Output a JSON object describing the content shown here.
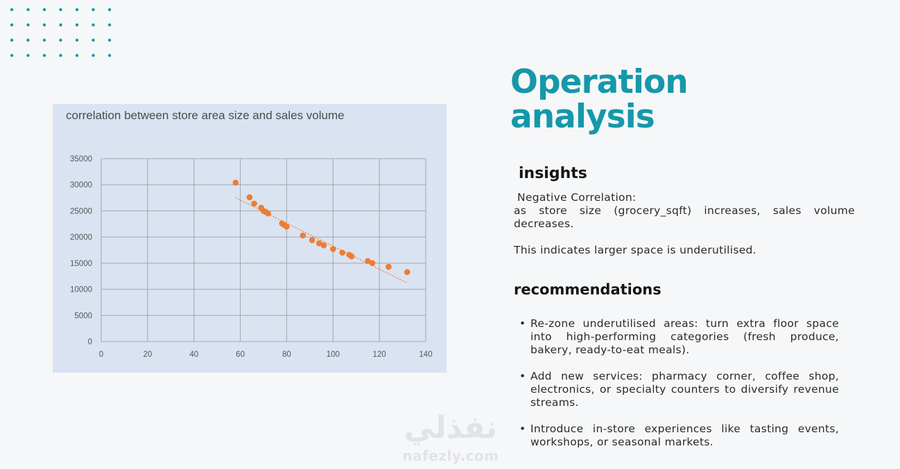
{
  "heading": {
    "line1": "Operation",
    "line2": "analysis"
  },
  "insights": {
    "title": "insights",
    "heading": "Negative Correlation:",
    "body": "as store size (grocery_sqft) increases, sales volume decreases.",
    "note": "This indicates larger space is underutilised."
  },
  "recommendations": {
    "title": "recommendations",
    "items": [
      "Re-zone underutilised areas: turn extra floor space into high-performing categories (fresh produce, bakery, ready-to-eat meals).",
      "Add new services: pharmacy corner, coffee shop, electronics, or specialty counters to diversify revenue streams.",
      "Introduce in-store experiences like tasting events, workshops, or seasonal markets."
    ]
  },
  "watermark": {
    "arabic": "نفذلي",
    "latin": "nafezly.com"
  },
  "colors": {
    "accent": "#1598aa",
    "point": "#ed7d31",
    "panel": "#dae3f2"
  },
  "chart_data": {
    "type": "scatter",
    "title": "correlation between store area size and sales volume",
    "xlabel": "",
    "ylabel": "",
    "xlim": [
      0,
      140
    ],
    "ylim": [
      0,
      35000
    ],
    "x_ticks": [
      0,
      20,
      40,
      60,
      80,
      100,
      120,
      140
    ],
    "y_ticks": [
      0,
      5000,
      10000,
      15000,
      20000,
      25000,
      30000,
      35000
    ],
    "grid": true,
    "trendline": {
      "type": "linear",
      "dashed": true,
      "from": [
        58,
        27500
      ],
      "to": [
        132,
        11200
      ]
    },
    "series": [
      {
        "points": [
          [
            58,
            30400
          ],
          [
            64,
            27600
          ],
          [
            66,
            26400
          ],
          [
            69,
            25600
          ],
          [
            70,
            25000
          ],
          [
            71,
            24800
          ],
          [
            72,
            24500
          ],
          [
            78,
            22600
          ],
          [
            79,
            22300
          ],
          [
            80,
            22000
          ],
          [
            87,
            20300
          ],
          [
            91,
            19400
          ],
          [
            94,
            18800
          ],
          [
            96,
            18400
          ],
          [
            100,
            17700
          ],
          [
            104,
            17000
          ],
          [
            107,
            16600
          ],
          [
            108,
            16300
          ],
          [
            115,
            15400
          ],
          [
            117,
            15000
          ],
          [
            124,
            14300
          ],
          [
            132,
            13300
          ]
        ]
      }
    ]
  }
}
